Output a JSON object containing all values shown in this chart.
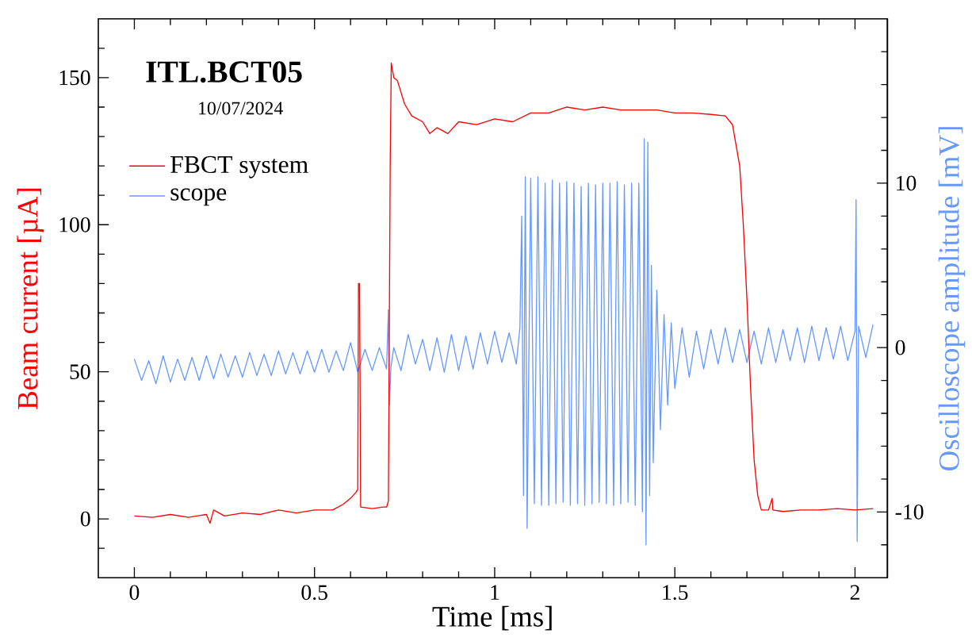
{
  "chart_data": {
    "type": "line",
    "title": "ITL.BCT05",
    "subtitle": "10/07/2024",
    "xlabel": "Time  [ms]",
    "ylabel": "Beam current  [µA]",
    "y2label": "Oscilloscope amplitude  [mV]",
    "xlim": [
      -0.1,
      2.09
    ],
    "ylim": [
      -20,
      170
    ],
    "y2lim": [
      -14,
      20
    ],
    "xticks": [
      0,
      {
        "value": 0.1,
        "label": null
      },
      {
        "value": 0.2,
        "label": null
      },
      {
        "value": 0.3,
        "label": null
      },
      {
        "value": 0.4,
        "label": null
      },
      0.5,
      {
        "value": 0.6,
        "label": null
      },
      {
        "value": 0.7,
        "label": null
      },
      {
        "value": 0.8,
        "label": null
      },
      {
        "value": 0.9,
        "label": null
      },
      1,
      {
        "value": 1.1,
        "label": null
      },
      {
        "value": 1.2,
        "label": null
      },
      {
        "value": 1.3,
        "label": null
      },
      {
        "value": 1.4,
        "label": null
      },
      1.5,
      {
        "value": 1.6,
        "label": null
      },
      {
        "value": 1.7,
        "label": null
      },
      {
        "value": 1.8,
        "label": null
      },
      {
        "value": 1.9,
        "label": null
      },
      2
    ],
    "yticks": [
      {
        "value": -10,
        "label": null
      },
      0,
      {
        "value": 10,
        "label": null
      },
      {
        "value": 20,
        "label": null
      },
      {
        "value": 30,
        "label": null
      },
      {
        "value": 40,
        "label": null
      },
      50,
      {
        "value": 60,
        "label": null
      },
      {
        "value": 70,
        "label": null
      },
      {
        "value": 80,
        "label": null
      },
      {
        "value": 90,
        "label": null
      },
      100,
      {
        "value": 110,
        "label": null
      },
      {
        "value": 120,
        "label": null
      },
      {
        "value": 130,
        "label": null
      },
      {
        "value": 140,
        "label": null
      },
      150,
      {
        "value": 160,
        "label": null
      }
    ],
    "y2ticks": [
      {
        "value": -12,
        "label": null
      },
      -10,
      {
        "value": -8,
        "label": null
      },
      {
        "value": -6,
        "label": null
      },
      {
        "value": -4,
        "label": null
      },
      {
        "value": -2,
        "label": null
      },
      0,
      {
        "value": 2,
        "label": null
      },
      {
        "value": 4,
        "label": null
      },
      {
        "value": 6,
        "label": null
      },
      {
        "value": 8,
        "label": null
      },
      10,
      {
        "value": 12,
        "label": null
      },
      {
        "value": 14,
        "label": null
      },
      {
        "value": 16,
        "label": null
      },
      {
        "value": 18,
        "label": null
      }
    ],
    "legend": "top left",
    "marker": "none",
    "line_style": "solid",
    "series": [
      {
        "name": "FBCT system",
        "color": "#ff0000",
        "axis": "y",
        "x": [
          0,
          0.05,
          0.1,
          0.15,
          0.2,
          0.21,
          0.22,
          0.25,
          0.3,
          0.35,
          0.4,
          0.45,
          0.5,
          0.55,
          0.58,
          0.6,
          0.615,
          0.62,
          0.622,
          0.625,
          0.628,
          0.66,
          0.69,
          0.7,
          0.705,
          0.71,
          0.713,
          0.72,
          0.73,
          0.75,
          0.77,
          0.8,
          0.82,
          0.84,
          0.87,
          0.9,
          0.95,
          1.0,
          1.05,
          1.1,
          1.15,
          1.2,
          1.25,
          1.3,
          1.35,
          1.4,
          1.45,
          1.5,
          1.55,
          1.6,
          1.64,
          1.66,
          1.68,
          1.69,
          1.7,
          1.71,
          1.72,
          1.73,
          1.74,
          1.76,
          1.77,
          1.772,
          1.8,
          1.85,
          1.9,
          1.95,
          2.0,
          2.05
        ],
        "values": [
          1,
          0.5,
          1.5,
          0.5,
          1.5,
          -1.5,
          3,
          1,
          2,
          1.5,
          3,
          2,
          3,
          3,
          5,
          7,
          9,
          10,
          80,
          80,
          4,
          3.5,
          4,
          4,
          6,
          120,
          155,
          150,
          149,
          141,
          137,
          135,
          131,
          133,
          131,
          135,
          134,
          136,
          135,
          138,
          138,
          140,
          139,
          140,
          139,
          139,
          139,
          138,
          138,
          137.5,
          137,
          134,
          120,
          100,
          75,
          45,
          20,
          8,
          3,
          3,
          7,
          3,
          2.5,
          3,
          3,
          3.5,
          3,
          3.5
        ]
      },
      {
        "name": "scope",
        "color": "#6699ff",
        "axis": "y2",
        "x": [
          0,
          0.02,
          0.04,
          0.06,
          0.08,
          0.1,
          0.12,
          0.14,
          0.16,
          0.18,
          0.2,
          0.22,
          0.24,
          0.26,
          0.28,
          0.3,
          0.32,
          0.34,
          0.36,
          0.38,
          0.4,
          0.42,
          0.44,
          0.46,
          0.48,
          0.5,
          0.52,
          0.54,
          0.56,
          0.58,
          0.6,
          0.62,
          0.64,
          0.66,
          0.68,
          0.7,
          0.705,
          0.708,
          0.712,
          0.72,
          0.74,
          0.76,
          0.78,
          0.8,
          0.82,
          0.84,
          0.86,
          0.88,
          0.9,
          0.92,
          0.94,
          0.96,
          0.98,
          1.0,
          1.02,
          1.04,
          1.06,
          1.07,
          1.075,
          1.08,
          1.085,
          1.09,
          1.1,
          1.11,
          1.12,
          1.13,
          1.14,
          1.15,
          1.16,
          1.17,
          1.18,
          1.19,
          1.2,
          1.21,
          1.22,
          1.23,
          1.24,
          1.25,
          1.26,
          1.27,
          1.28,
          1.29,
          1.3,
          1.31,
          1.32,
          1.33,
          1.34,
          1.35,
          1.36,
          1.37,
          1.38,
          1.39,
          1.4,
          1.41,
          1.415,
          1.42,
          1.425,
          1.43,
          1.435,
          1.44,
          1.45,
          1.46,
          1.47,
          1.48,
          1.49,
          1.5,
          1.52,
          1.54,
          1.56,
          1.58,
          1.6,
          1.62,
          1.64,
          1.66,
          1.68,
          1.7,
          1.72,
          1.74,
          1.76,
          1.78,
          1.8,
          1.82,
          1.84,
          1.86,
          1.88,
          1.9,
          1.92,
          1.94,
          1.96,
          1.98,
          2.0,
          2.003,
          2.006,
          2.01,
          2.03,
          2.05
        ],
        "values": [
          -0.7,
          -2.0,
          -0.8,
          -2.2,
          -0.5,
          -2.1,
          -0.7,
          -2.0,
          -0.6,
          -2.0,
          -0.5,
          -1.9,
          -0.4,
          -1.8,
          -0.5,
          -1.8,
          -0.3,
          -1.7,
          -0.4,
          -1.7,
          -0.2,
          -1.6,
          -0.3,
          -1.6,
          -0.2,
          -1.5,
          -0.1,
          -1.5,
          -0.2,
          -1.4,
          0.3,
          -1.5,
          -0.1,
          -1.4,
          0,
          -1.3,
          2.3,
          -3.5,
          -1.2,
          0,
          -1.4,
          0.8,
          -1.0,
          0.5,
          -1.4,
          0.6,
          -1.5,
          0.8,
          -1.4,
          0.7,
          -1.3,
          0.9,
          -1.0,
          1.0,
          -0.9,
          0.9,
          -1.0,
          1.2,
          8,
          -9,
          10.4,
          -11,
          10.3,
          -9.5,
          10.4,
          -9.6,
          10,
          -9.6,
          10.2,
          -9.5,
          10,
          -9.4,
          10.1,
          -9.6,
          10,
          -9.5,
          9.8,
          -9.6,
          10,
          -9.5,
          9.9,
          -9.4,
          10,
          -9.5,
          10,
          -9.6,
          10.1,
          -9.5,
          9.9,
          -9.4,
          10,
          -9.6,
          10,
          -10,
          12.7,
          -12,
          12.5,
          -9,
          5,
          -7,
          3.5,
          -5,
          2,
          -3.5,
          1.5,
          -2.5,
          1.2,
          -1.8,
          1.0,
          -1.3,
          1.1,
          -1.0,
          1.2,
          -0.9,
          1.1,
          -0.9,
          1.0,
          -1.0,
          1.2,
          -0.9,
          1.1,
          -0.8,
          1.2,
          -0.9,
          1.3,
          -0.8,
          1.2,
          -0.7,
          1.3,
          -0.8,
          1.0,
          9.0,
          -11.8,
          1.3,
          -0.6,
          1.4
        ]
      }
    ]
  }
}
